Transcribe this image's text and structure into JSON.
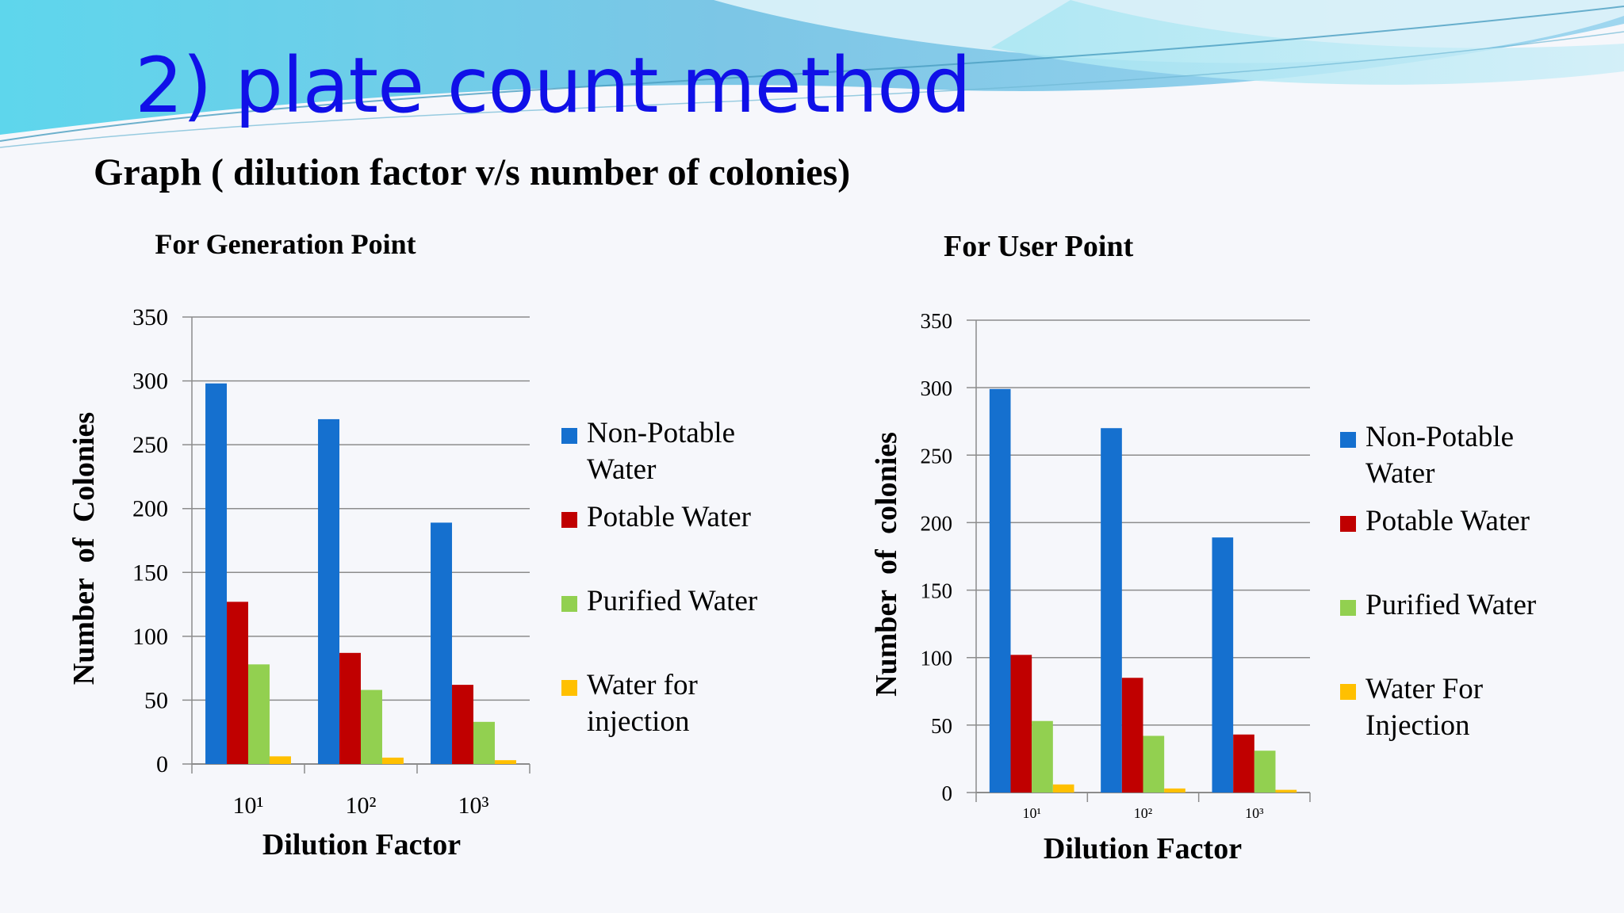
{
  "slide": {
    "title": "2) plate count method",
    "subtitle": "Graph ( dilution factor v/s number of colonies)"
  },
  "colors": {
    "title": "#1010e8",
    "Non-Potable Water": "#1570cf",
    "Potable Water": "#c00000",
    "Purified Water": "#92d050",
    "Water for injection": "#ffc000"
  },
  "chart_data": [
    {
      "type": "bar",
      "title": "For Generation Point",
      "xlabel": "Dilution Factor",
      "ylabel": "Number of Colonies",
      "categories": [
        "10¹",
        "10²",
        "10³"
      ],
      "ylim": [
        0,
        350
      ],
      "yticks": [
        0,
        50,
        100,
        150,
        200,
        250,
        300,
        350
      ],
      "grid": true,
      "legend_position": "right",
      "series": [
        {
          "name": "Non-Potable Water",
          "color": "#1570cf",
          "values": [
            298,
            270,
            189
          ]
        },
        {
          "name": "Potable Water",
          "color": "#c00000",
          "values": [
            127,
            87,
            62
          ]
        },
        {
          "name": "Purified Water",
          "color": "#92d050",
          "values": [
            78,
            58,
            33
          ]
        },
        {
          "name": "Water for injection",
          "color": "#ffc000",
          "values": [
            6,
            5,
            3
          ]
        }
      ]
    },
    {
      "type": "bar",
      "title": "For User Point",
      "xlabel": "Dilution Factor",
      "ylabel": "Number of colonies",
      "categories": [
        "10¹",
        "10²",
        "10³"
      ],
      "ylim": [
        0,
        350
      ],
      "yticks": [
        0,
        50,
        100,
        150,
        200,
        250,
        300,
        350
      ],
      "grid": true,
      "legend_position": "right",
      "series": [
        {
          "name": "Non-Potable Water",
          "color": "#1570cf",
          "values": [
            299,
            270,
            189
          ]
        },
        {
          "name": "Potable Water",
          "color": "#c00000",
          "values": [
            102,
            85,
            43
          ]
        },
        {
          "name": "Purified Water",
          "color": "#92d050",
          "values": [
            53,
            42,
            31
          ]
        },
        {
          "name": "Water For Injection",
          "color": "#ffc000",
          "values": [
            6,
            3,
            2
          ]
        }
      ]
    }
  ]
}
